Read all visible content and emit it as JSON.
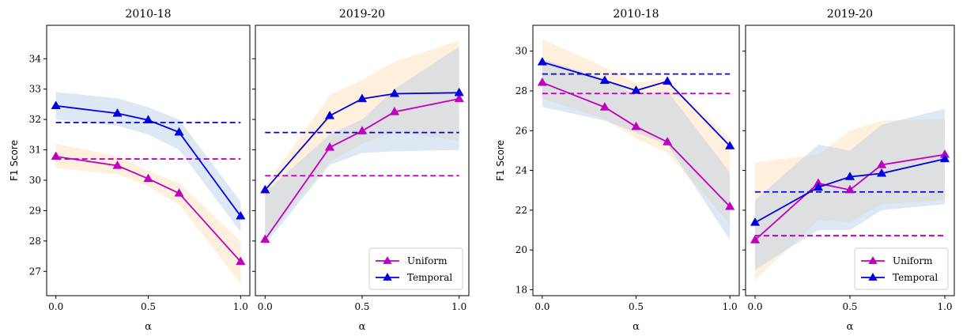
{
  "colors": {
    "uniform": "#c000c0",
    "temporal": "#0000e0",
    "uniform_band": "#ffdcb4",
    "temporal_band": "#b4cde6"
  },
  "legend": {
    "uniform": "Uniform",
    "temporal": "Temporal"
  },
  "chart_data": [
    {
      "type": "line",
      "title": "2010-18",
      "xlabel": "α",
      "ylabel": "F1 Score",
      "xlim": [
        -0.05,
        1.05
      ],
      "ylim": [
        26.2,
        35.1
      ],
      "xticks": [
        "0.0",
        "0.5",
        "1.0"
      ],
      "yticks": [
        "27",
        "28",
        "29",
        "30",
        "31",
        "32",
        "33",
        "34"
      ],
      "x": [
        0,
        0.333,
        0.5,
        0.667,
        1.0
      ],
      "series": [
        {
          "name": "Uniform",
          "values": [
            30.78,
            30.48,
            30.05,
            29.57,
            27.32
          ],
          "baseline": 30.7,
          "band_low": [
            30.6,
            30.35,
            29.9,
            29.4,
            27.0
          ],
          "band_high": [
            31.0,
            30.65,
            30.2,
            29.75,
            27.7
          ]
        },
        {
          "name": "Temporal",
          "values": [
            32.45,
            32.2,
            31.98,
            31.58,
            28.82
          ],
          "baseline": 31.9,
          "band_low": [
            32.1,
            31.95,
            31.75,
            31.3,
            28.5
          ],
          "band_high": [
            32.8,
            32.55,
            32.25,
            31.85,
            29.2
          ]
        }
      ],
      "uniform_shade_low": [
        30.4,
        30.2,
        29.8,
        29.2,
        26.6
      ],
      "uniform_shade_high": [
        31.2,
        30.8,
        30.3,
        29.9,
        28.0
      ],
      "temporal_shade_low": [
        32.0,
        31.8,
        31.5,
        31.0,
        28.3
      ],
      "temporal_shade_high": [
        32.9,
        32.7,
        32.4,
        32.0,
        29.3
      ]
    },
    {
      "type": "line",
      "title": "2019-20",
      "xlabel": "α",
      "ylabel": "",
      "xlim": [
        -0.05,
        1.05
      ],
      "ylim": [
        26.2,
        35.1
      ],
      "xticks": [
        "0.0",
        "0.5",
        "1.0"
      ],
      "yticks": [],
      "legend_position": "lower-right",
      "x": [
        0,
        0.333,
        0.5,
        0.667,
        1.0
      ],
      "series": [
        {
          "name": "Uniform",
          "values": [
            28.05,
            31.08,
            31.62,
            32.25,
            32.68
          ],
          "baseline": 30.15
        },
        {
          "name": "Temporal",
          "values": [
            29.68,
            32.12,
            32.68,
            32.85,
            32.88
          ],
          "baseline": 31.57
        }
      ],
      "uniform_shade_low": [
        28.1,
        30.6,
        31.2,
        31.6,
        31.3
      ],
      "uniform_shade_high": [
        29.8,
        32.8,
        33.3,
        33.9,
        34.6
      ],
      "temporal_shade_low": [
        27.9,
        30.5,
        30.9,
        30.95,
        31.0
      ],
      "temporal_shade_high": [
        29.6,
        31.5,
        32.0,
        33.0,
        34.4
      ]
    },
    {
      "type": "line",
      "title": "2010-18",
      "xlabel": "α",
      "ylabel": "F1 Score",
      "xlim": [
        -0.05,
        1.05
      ],
      "ylim": [
        17.7,
        31.3
      ],
      "xticks": [
        "0.0",
        "0.5",
        "1.0"
      ],
      "yticks": [
        "18",
        "20",
        "22",
        "24",
        "26",
        "28",
        "30"
      ],
      "x": [
        0,
        0.333,
        0.5,
        0.667,
        1.0
      ],
      "series": [
        {
          "name": "Uniform",
          "values": [
            28.42,
            27.18,
            26.2,
            25.43,
            22.18
          ],
          "baseline": 27.87
        },
        {
          "name": "Temporal",
          "values": [
            29.45,
            28.52,
            28.02,
            28.48,
            25.23
          ],
          "baseline": 28.85
        }
      ],
      "uniform_shade_low": [
        27.6,
        26.6,
        25.6,
        24.9,
        21.3
      ],
      "uniform_shade_high": [
        30.6,
        29.2,
        28.4,
        28.6,
        25.6
      ],
      "temporal_shade_low": [
        27.2,
        26.5,
        25.9,
        25.3,
        20.5
      ],
      "temporal_shade_high": [
        29.6,
        28.6,
        27.8,
        28.0,
        23.9
      ]
    },
    {
      "type": "line",
      "title": "2019-20",
      "xlabel": "α",
      "ylabel": "",
      "xlim": [
        -0.05,
        1.05
      ],
      "ylim": [
        17.7,
        31.3
      ],
      "xticks": [
        "0.0",
        "0.5",
        "1.0"
      ],
      "yticks": [],
      "legend_position": "lower-right",
      "x": [
        0,
        0.333,
        0.5,
        0.667,
        1.0
      ],
      "series": [
        {
          "name": "Uniform",
          "values": [
            20.5,
            23.35,
            23.02,
            24.28,
            24.8
          ],
          "baseline": 20.72
        },
        {
          "name": "Temporal",
          "values": [
            21.38,
            23.15,
            23.68,
            23.85,
            24.58
          ],
          "baseline": 22.92
        }
      ],
      "uniform_shade_low": [
        18.5,
        21.5,
        21.4,
        22.3,
        22.5
      ],
      "uniform_shade_high": [
        24.4,
        24.8,
        26.0,
        26.5,
        26.6
      ],
      "temporal_shade_low": [
        19.0,
        21.0,
        21.0,
        22.0,
        22.3
      ],
      "temporal_shade_high": [
        22.5,
        25.3,
        25.0,
        26.3,
        27.1
      ]
    }
  ]
}
